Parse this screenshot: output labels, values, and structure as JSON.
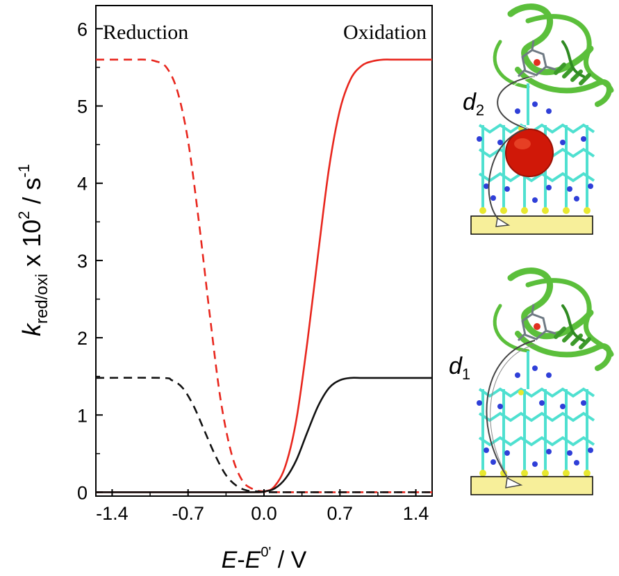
{
  "chart_data": {
    "type": "line",
    "xlabel": {
      "base": "E",
      "sep": "-",
      "base2": "E",
      "sup": "0'",
      "unit": " / V"
    },
    "ylabel": {
      "base": "k",
      "sub": "red/oxi",
      "mid": " x 10",
      "sup": "2",
      "unit": " / s",
      "unit_sup": "-1"
    },
    "xlim": [
      -1.55,
      1.55
    ],
    "ylim": [
      -0.05,
      6.3
    ],
    "x_ticks": [
      -1.4,
      -0.7,
      0.0,
      0.7,
      1.4
    ],
    "x_tick_labels": [
      "-1.4",
      "-0.7",
      "0.0",
      "0.7",
      "1.4"
    ],
    "y_ticks": [
      0,
      1,
      2,
      3,
      4,
      5,
      6
    ],
    "y_tick_labels": [
      "0",
      "1",
      "2",
      "3",
      "4",
      "5",
      "6"
    ],
    "annotations": {
      "left": "Reduction",
      "right": "Oxidation"
    },
    "grid": false,
    "legend": "none",
    "series": [
      {
        "kind": "oxidation",
        "color": "#e8261d",
        "dash": "solid",
        "x": [
          -1.55,
          -0.2,
          0.0,
          0.1,
          0.2,
          0.3,
          0.4,
          0.5,
          0.6,
          0.7,
          0.8,
          0.9,
          1.0,
          1.1,
          1.2,
          1.55
        ],
        "y": [
          0,
          0,
          0.01,
          0.08,
          0.35,
          0.95,
          1.95,
          3.1,
          4.2,
          4.95,
          5.35,
          5.52,
          5.58,
          5.6,
          5.6,
          5.6
        ]
      },
      {
        "kind": "reduction",
        "color": "#e8261d",
        "dash": "dashed",
        "x": [
          -1.55,
          -1.2,
          -1.1,
          -1.0,
          -0.9,
          -0.8,
          -0.7,
          -0.6,
          -0.5,
          -0.4,
          -0.3,
          -0.2,
          -0.1,
          0.0,
          0.2,
          1.55
        ],
        "y": [
          5.6,
          5.6,
          5.6,
          5.58,
          5.5,
          5.2,
          4.55,
          3.5,
          2.3,
          1.2,
          0.5,
          0.15,
          0.04,
          0.01,
          0,
          0
        ]
      },
      {
        "kind": "oxidation",
        "color": "#111111",
        "dash": "solid",
        "x": [
          -1.55,
          -0.2,
          0.0,
          0.1,
          0.2,
          0.3,
          0.4,
          0.5,
          0.6,
          0.7,
          0.8,
          0.9,
          1.0,
          1.55
        ],
        "y": [
          0,
          0,
          0.01,
          0.05,
          0.18,
          0.42,
          0.78,
          1.12,
          1.35,
          1.45,
          1.48,
          1.48,
          1.48,
          1.48
        ]
      },
      {
        "kind": "reduction",
        "color": "#111111",
        "dash": "dashed",
        "x": [
          -1.55,
          -0.95,
          -0.85,
          -0.75,
          -0.65,
          -0.55,
          -0.45,
          -0.35,
          -0.25,
          -0.15,
          -0.05,
          0.0,
          0.2,
          1.55
        ],
        "y": [
          1.48,
          1.48,
          1.45,
          1.35,
          1.12,
          0.8,
          0.48,
          0.22,
          0.08,
          0.02,
          0.01,
          0,
          0,
          0
        ]
      }
    ]
  },
  "schematic": {
    "top_label": {
      "base": "d",
      "sub": "2"
    },
    "bottom_label": {
      "base": "d",
      "sub": "1"
    },
    "colors": {
      "protein": "#5bbf3b",
      "linker": "#4fe0d0",
      "nitrogen": "#2f3fd8",
      "sulfur": "#e8e830",
      "electrode": "#f7ef9a",
      "particle": "#d01808"
    }
  }
}
